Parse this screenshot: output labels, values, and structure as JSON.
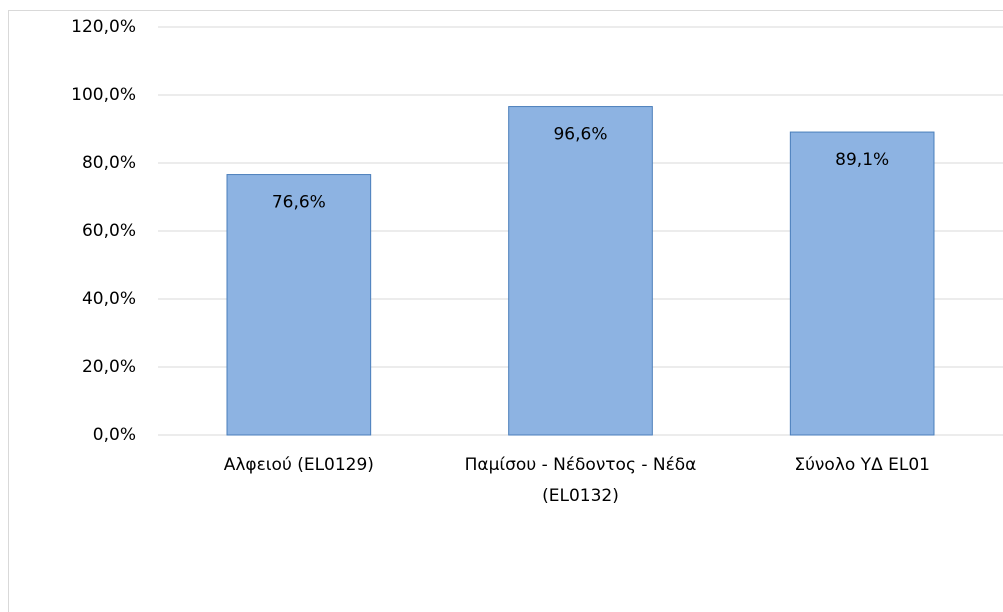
{
  "chart_data": {
    "type": "bar",
    "categories": [
      "Αλφειού (EL0129)",
      "Παμίσου - Νέδοντος - Νέδα (EL0132)",
      "Σύνολο ΥΔ EL01"
    ],
    "values": [
      76.6,
      96.6,
      89.1
    ],
    "value_labels": [
      "76,6%",
      "96,6%",
      "89,1%"
    ],
    "color": "#8db3e2",
    "ylim": [
      0,
      120
    ],
    "yticks": [
      {
        "value": 0,
        "label": "0,0%"
      },
      {
        "value": 20,
        "label": "20,0%"
      },
      {
        "value": 40,
        "label": "40,0%"
      },
      {
        "value": 60,
        "label": "60,0%"
      },
      {
        "value": 80,
        "label": "80,0%"
      },
      {
        "value": 100,
        "label": "100,0%"
      },
      {
        "value": 120,
        "label": "120,0%"
      }
    ],
    "grid": true
  }
}
